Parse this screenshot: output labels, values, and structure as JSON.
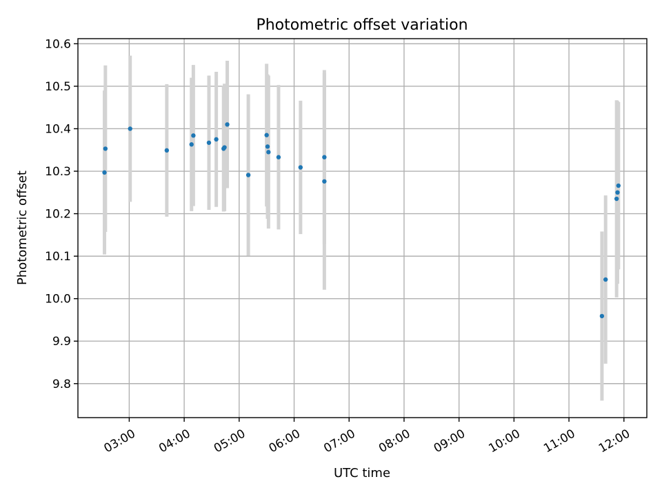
{
  "chart_data": {
    "type": "scatter",
    "title": "Photometric offset variation",
    "xlabel": "UTC time",
    "ylabel": "Photometric offset",
    "xlim": [
      "02:04",
      "12:25"
    ],
    "ylim": [
      9.72,
      10.612
    ],
    "grid": true,
    "x_ticks": [
      "03:00",
      "04:00",
      "05:00",
      "06:00",
      "07:00",
      "08:00",
      "09:00",
      "10:00",
      "11:00",
      "12:00"
    ],
    "y_ticks": [
      9.8,
      9.9,
      10.0,
      10.1,
      10.2,
      10.3,
      10.4,
      10.5,
      10.6
    ],
    "y_tick_labels": [
      "9.8",
      "9.9",
      "10.0",
      "10.1",
      "10.2",
      "10.3",
      "10.4",
      "10.5",
      "10.6"
    ],
    "point_color": "#1f77b4",
    "errorbar_color": "#d3d3d3",
    "points": [
      {
        "time": "02:33",
        "y": 10.297,
        "err": 0.193
      },
      {
        "time": "02:34",
        "y": 10.353,
        "err": 0.196
      },
      {
        "time": "03:01",
        "y": 10.4,
        "err": 0.172
      },
      {
        "time": "03:41",
        "y": 10.349,
        "err": 0.156
      },
      {
        "time": "04:08",
        "y": 10.363,
        "err": 0.157
      },
      {
        "time": "04:10",
        "y": 10.384,
        "err": 0.166
      },
      {
        "time": "04:27",
        "y": 10.367,
        "err": 0.158
      },
      {
        "time": "04:35",
        "y": 10.375,
        "err": 0.159
      },
      {
        "time": "04:43",
        "y": 10.353,
        "err": 0.148
      },
      {
        "time": "04:44",
        "y": 10.356,
        "err": 0.15
      },
      {
        "time": "04:47",
        "y": 10.41,
        "err": 0.15
      },
      {
        "time": "05:10",
        "y": 10.291,
        "err": 0.19
      },
      {
        "time": "05:30",
        "y": 10.385,
        "err": 0.168
      },
      {
        "time": "05:31",
        "y": 10.358,
        "err": 0.17
      },
      {
        "time": "05:32",
        "y": 10.345,
        "err": 0.18
      },
      {
        "time": "05:43",
        "y": 10.333,
        "err": 0.17
      },
      {
        "time": "06:07",
        "y": 10.309,
        "err": 0.157
      },
      {
        "time": "06:33",
        "y": 10.333,
        "err": 0.205
      },
      {
        "time": "06:33",
        "y": 10.276,
        "err": 0.255
      },
      {
        "time": "11:36",
        "y": 9.959,
        "err": 0.199
      },
      {
        "time": "11:40",
        "y": 10.045,
        "err": 0.198
      },
      {
        "time": "11:52",
        "y": 10.235,
        "err": 0.232
      },
      {
        "time": "11:53",
        "y": 10.25,
        "err": 0.215
      },
      {
        "time": "11:54",
        "y": 10.266,
        "err": 0.197
      }
    ]
  }
}
